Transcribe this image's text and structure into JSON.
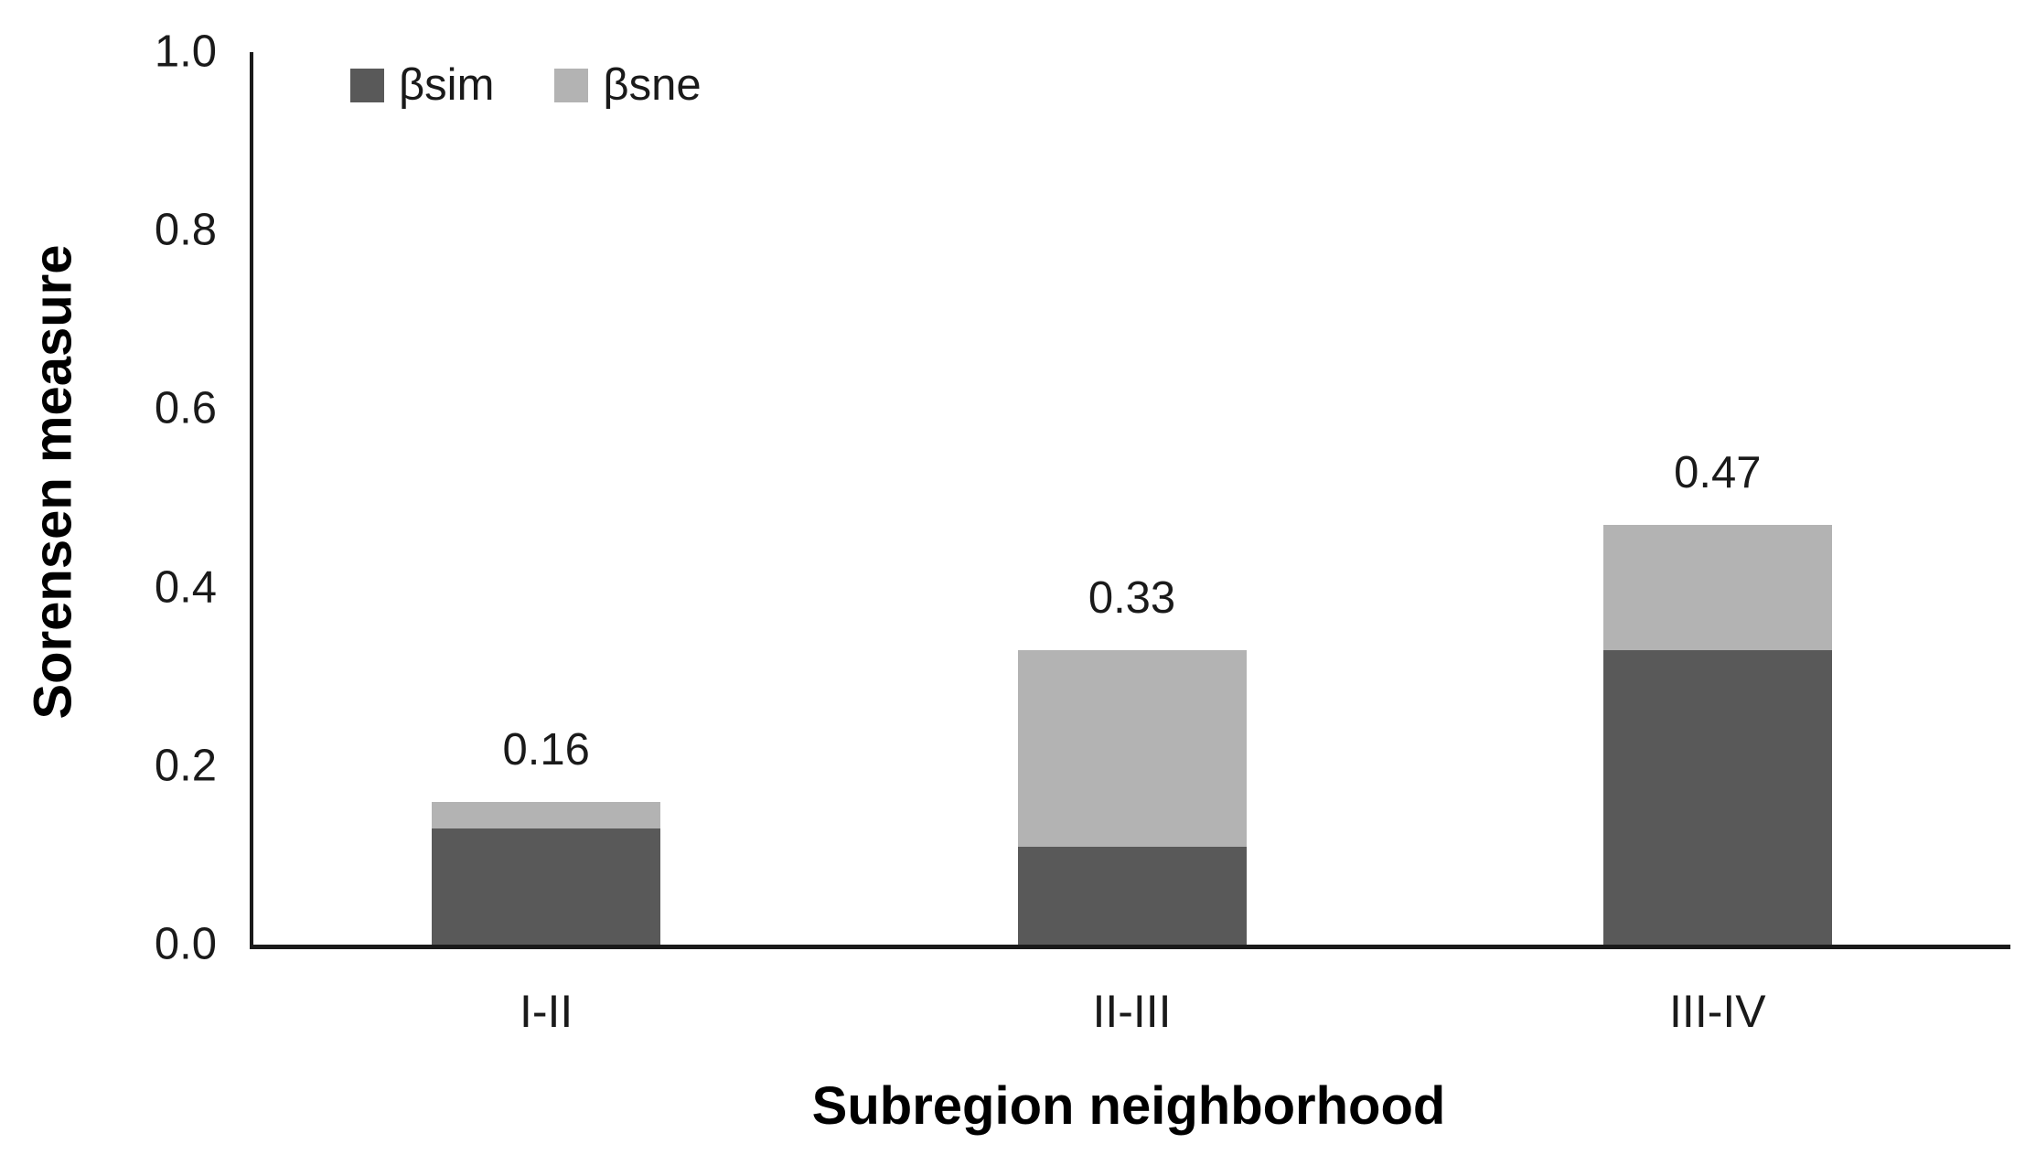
{
  "chart_data": {
    "type": "bar",
    "stacked": true,
    "title": "",
    "xlabel": "Subregion neighborhood",
    "ylabel": "Sorensen measure",
    "categories": [
      "I-II",
      "II-III",
      "III-IV"
    ],
    "series": [
      {
        "name": "βsim",
        "color": "#595959",
        "values": [
          0.13,
          0.11,
          0.33
        ]
      },
      {
        "name": "βsne",
        "color": "#b3b3b3",
        "values": [
          0.03,
          0.22,
          0.14
        ]
      }
    ],
    "totals_labels": [
      "0.16",
      "0.33",
      "0.47"
    ],
    "y_ticks": [
      "0.0",
      "0.2",
      "0.4",
      "0.6",
      "0.8",
      "1.0"
    ],
    "ylim": [
      0,
      1
    ],
    "grid": false,
    "legend_position": "top-left",
    "axis_color": "#1a1a1a",
    "text_color": "#1a1a1a"
  }
}
